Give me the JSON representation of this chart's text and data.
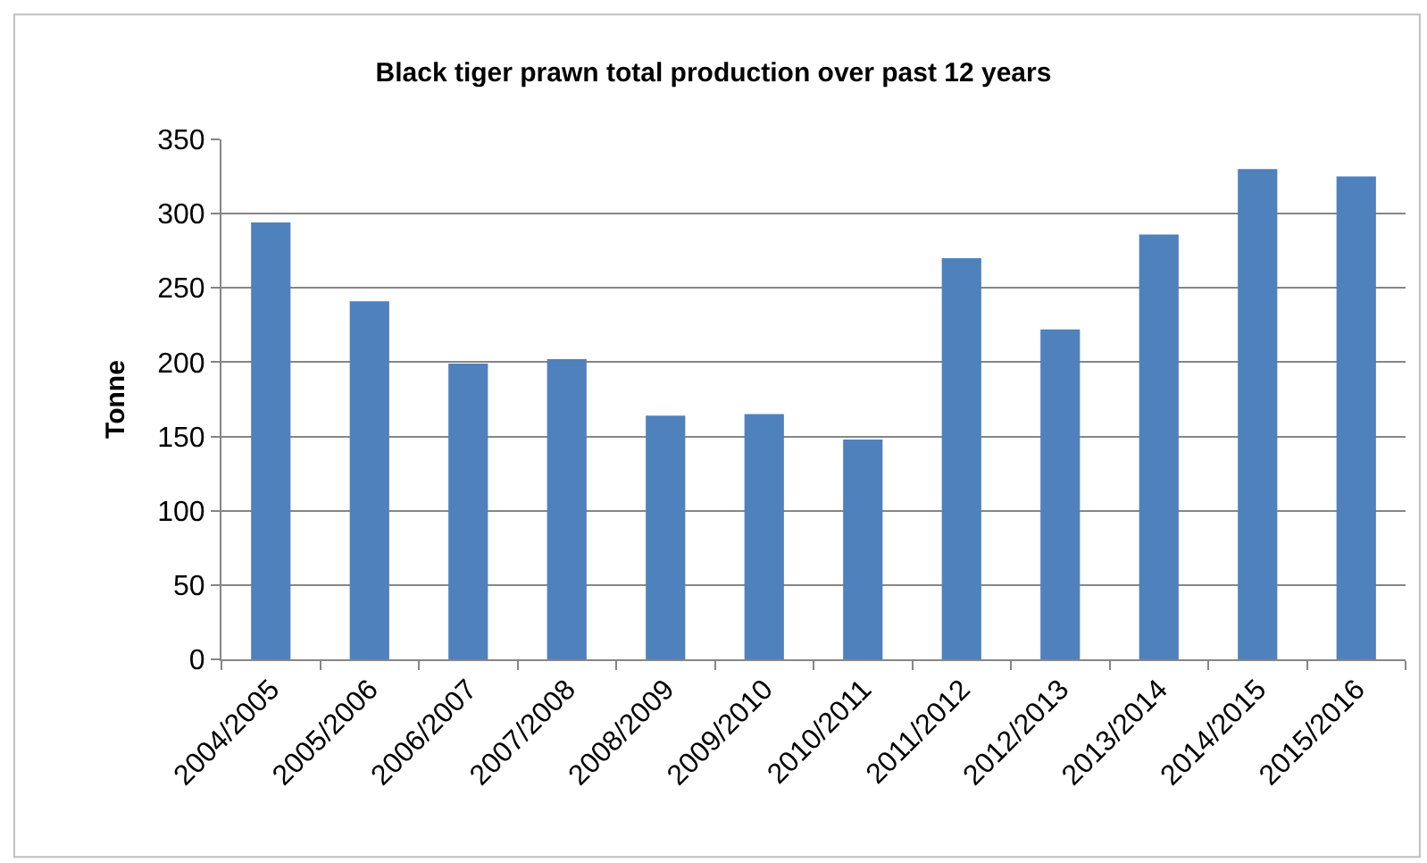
{
  "chart_data": {
    "type": "bar",
    "title": "Black tiger prawn total production over past 12 years",
    "ylabel": "Tonne",
    "categories": [
      "2004/2005",
      "2005/2006",
      "2006/2007",
      "2007/2008",
      "2008/2009",
      "2009/2010",
      "2010/2011",
      "2011/2012",
      "2012/2013",
      "2013/2014",
      "2014/2015",
      "2015/2016"
    ],
    "values": [
      294,
      241,
      199,
      202,
      164,
      165,
      148,
      270,
      222,
      286,
      330,
      325
    ],
    "color": "#4f81bd",
    "ylim": [
      0,
      350
    ],
    "yticks": [
      0,
      50,
      100,
      150,
      200,
      250,
      300,
      350
    ],
    "grid": "y",
    "legend": false
  }
}
